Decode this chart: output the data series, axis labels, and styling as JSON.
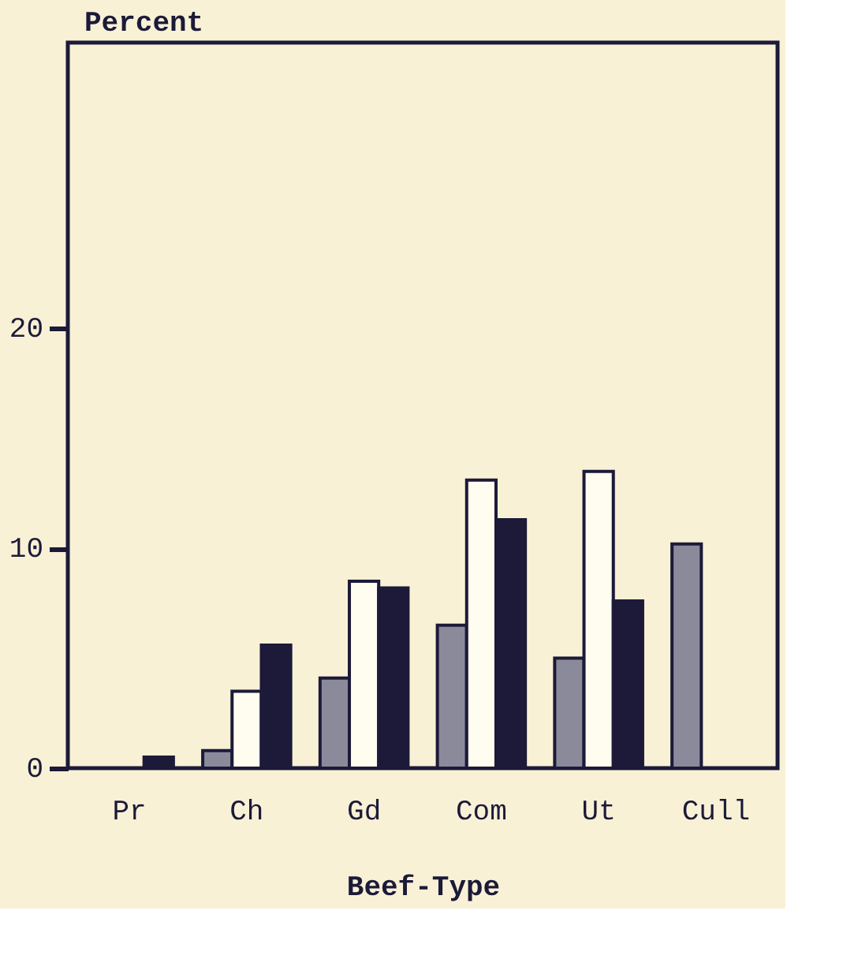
{
  "chart_data": {
    "type": "bar",
    "ylabel": "Percent",
    "xlabel": "Beef-Type",
    "categories": [
      "Pr",
      "Ch",
      "Gd",
      "Com",
      "Ut",
      "Cull"
    ],
    "series": [
      {
        "color": "#8a8a9a",
        "values": [
          null,
          0.8,
          4.1,
          6.5,
          5.0,
          10.2
        ]
      },
      {
        "color": "#fffdf0",
        "values": [
          null,
          3.5,
          8.5,
          13.1,
          13.5,
          null
        ]
      },
      {
        "color": "#1c1a38",
        "values": [
          0.5,
          5.6,
          8.2,
          11.3,
          7.6,
          null
        ]
      }
    ],
    "ylim": [
      0,
      33
    ],
    "yticks": [
      0,
      10,
      20
    ],
    "grid": false,
    "legend": false
  }
}
